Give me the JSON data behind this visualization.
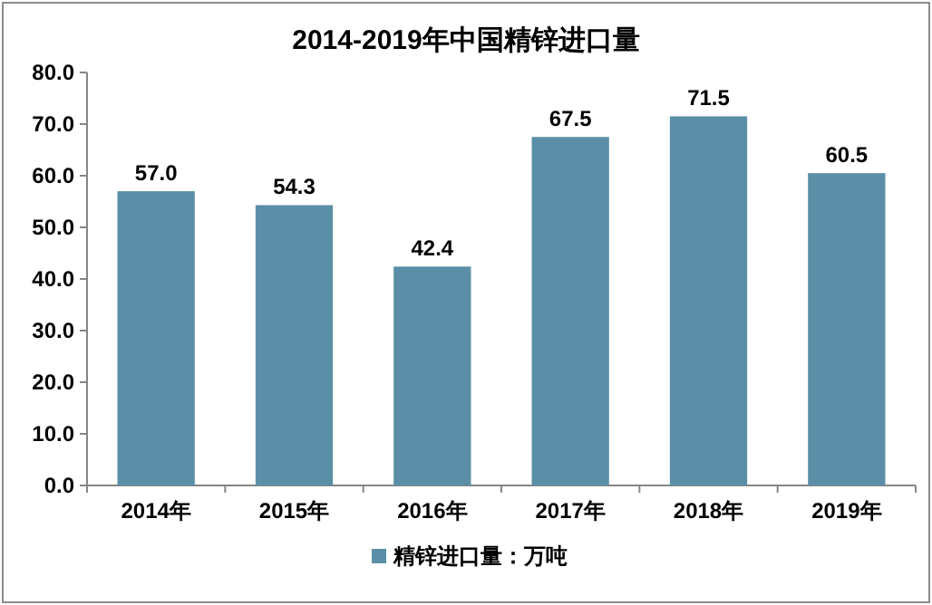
{
  "chart_data": {
    "type": "bar",
    "title": "2014-2019年中国精锌进口量",
    "categories": [
      "2014年",
      "2015年",
      "2016年",
      "2017年",
      "2018年",
      "2019年"
    ],
    "series": [
      {
        "name": "精锌进口量：万吨",
        "color": "#5b8fa8",
        "values": [
          57.0,
          54.3,
          42.4,
          67.5,
          71.5,
          60.5
        ],
        "value_labels": [
          "57.0",
          "54.3",
          "42.4",
          "67.5",
          "71.5",
          "60.5"
        ]
      }
    ],
    "ylim": [
      0,
      80
    ],
    "yticks": [
      {
        "value": 0,
        "label": "0.0"
      },
      {
        "value": 10,
        "label": "10.0"
      },
      {
        "value": 20,
        "label": "20.0"
      },
      {
        "value": 30,
        "label": "30.0"
      },
      {
        "value": 40,
        "label": "40.0"
      },
      {
        "value": 50,
        "label": "50.0"
      },
      {
        "value": 60,
        "label": "60.0"
      },
      {
        "value": 70,
        "label": "70.0"
      },
      {
        "value": 80,
        "label": "80.0"
      }
    ],
    "legend": "bottom"
  }
}
